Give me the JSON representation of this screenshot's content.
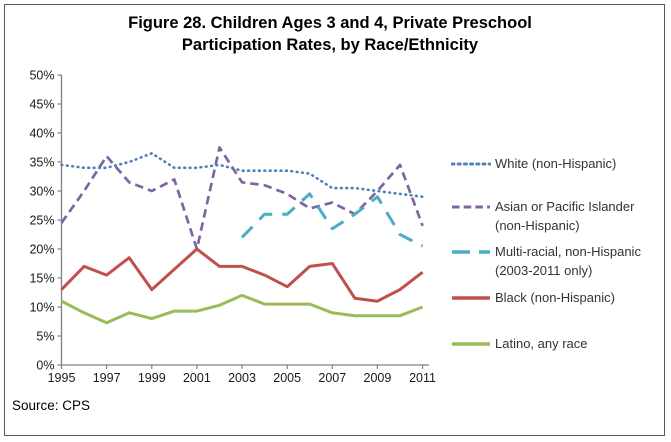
{
  "title": {
    "line1": "Figure 28. Children Ages 3 and 4, Private Preschool",
    "line2": "Participation Rates, by Race/Ethnicity"
  },
  "source_note": "Source: CPS",
  "frame": {
    "border_color": "#595959",
    "background": "#FFFFFF"
  },
  "axis": {
    "line_color": "#808080",
    "label_color": "#1a1a1a"
  },
  "chart_data": {
    "type": "line",
    "title": "Figure 28. Children Ages 3 and 4, Private Preschool Participation Rates, by Race/Ethnicity",
    "x": [
      1995,
      1996,
      1997,
      1998,
      1999,
      2000,
      2001,
      2002,
      2003,
      2004,
      2005,
      2006,
      2007,
      2008,
      2009,
      2010,
      2011
    ],
    "x_tick_labels": [
      "1995",
      "1997",
      "1999",
      "2001",
      "2003",
      "2005",
      "2007",
      "2009",
      "2011"
    ],
    "x_tick_years": [
      1995,
      1997,
      1999,
      2001,
      2003,
      2005,
      2007,
      2009,
      2011
    ],
    "y_tick_labels": [
      "0%",
      "5%",
      "10%",
      "15%",
      "20%",
      "25%",
      "30%",
      "35%",
      "40%",
      "45%",
      "50%"
    ],
    "y_ticks": [
      0,
      5,
      10,
      15,
      20,
      25,
      30,
      35,
      40,
      45,
      50
    ],
    "ylim": [
      0,
      50
    ],
    "grid": false,
    "legend_position": "right",
    "series": [
      {
        "name": "White (non-Hispanic)",
        "legend_lines": [
          "White (non-Hispanic)"
        ],
        "color": "#4F81BD",
        "style": "dotted",
        "values": [
          34.5,
          34,
          34,
          35,
          36.5,
          34,
          34,
          34.5,
          33.5,
          33.5,
          33.5,
          33,
          30.5,
          30.5,
          30,
          29.5,
          29
        ]
      },
      {
        "name": "Asian or Pacific Islander (non-Hispanic)",
        "legend_lines": [
          "Asian or Pacific Islander",
          "(non-Hispanic)"
        ],
        "color": "#8064A2",
        "style": "dashed",
        "values": [
          24.5,
          30,
          36,
          31.5,
          30,
          32,
          20,
          37.5,
          31.5,
          31,
          29.5,
          27,
          28,
          26,
          30,
          34.5,
          24
        ]
      },
      {
        "name": "Multi-racial, non-Hispanic (2003-2011 only)",
        "legend_lines": [
          "Multi-racial, non-Hispanic",
          "(2003-2011 only)"
        ],
        "color": "#4BACC6",
        "style": "long-dash",
        "values": [
          null,
          null,
          null,
          null,
          null,
          null,
          null,
          null,
          22,
          26,
          26,
          29.5,
          23.5,
          26,
          29,
          22.5,
          20.5
        ]
      },
      {
        "name": "Black (non-Hispanic)",
        "legend_lines": [
          "Black (non-Hispanic)"
        ],
        "color": "#C0504D",
        "style": "solid",
        "values": [
          13,
          17,
          15.5,
          18.5,
          13,
          16.5,
          20,
          17,
          17,
          15.5,
          13.5,
          17,
          17.5,
          11.5,
          11,
          13,
          16
        ]
      },
      {
        "name": "Latino, any race",
        "legend_lines": [
          "Latino, any race"
        ],
        "color": "#9BBB59",
        "style": "solid",
        "values": [
          11,
          9,
          7.3,
          9,
          8,
          9.3,
          9.3,
          10.3,
          12,
          10.5,
          10.5,
          10.5,
          9,
          8.5,
          8.5,
          8.5,
          10
        ]
      }
    ]
  }
}
